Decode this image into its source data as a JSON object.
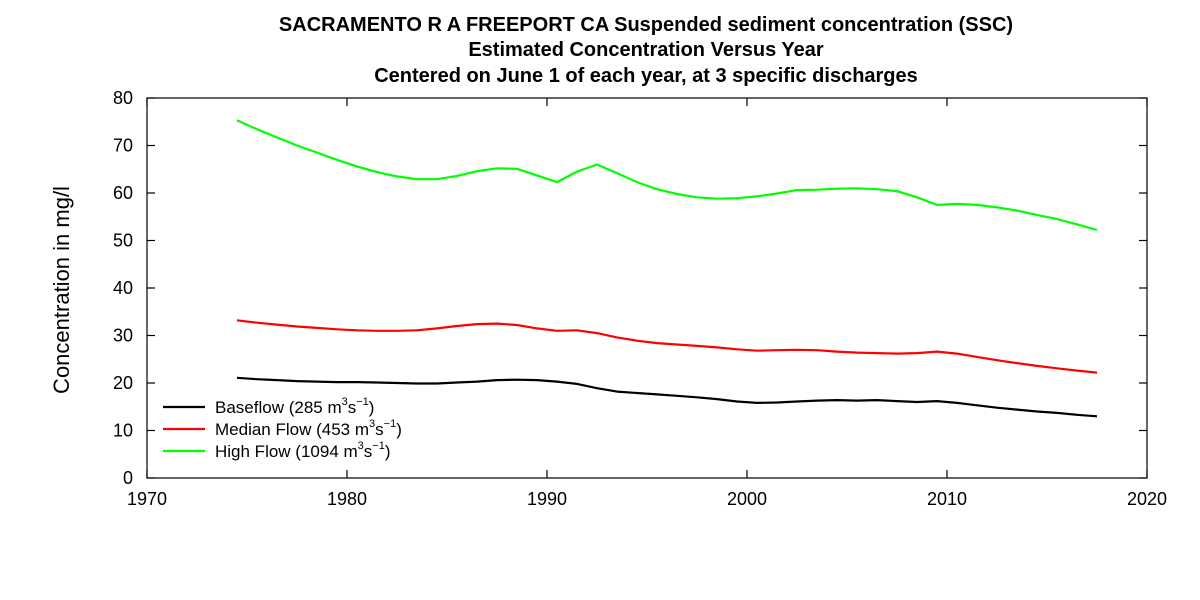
{
  "chart_data": {
    "type": "line",
    "title_lines": [
      "SACRAMENTO R A FREEPORT CA    Suspended sediment concentration (SSC)",
      "Estimated Concentration Versus Year",
      "Centered on June 1 of each year, at 3 specific discharges"
    ],
    "xlabel": "",
    "ylabel": "Concentration in mg/l",
    "xlim": [
      1970,
      2020
    ],
    "ylim": [
      0,
      80
    ],
    "x_ticks": [
      1970,
      1980,
      1990,
      2000,
      2010,
      2020
    ],
    "y_ticks": [
      0,
      10,
      20,
      30,
      40,
      50,
      60,
      70,
      80
    ],
    "grid": false,
    "legend_position": "bottom-left",
    "x": [
      1974.5,
      1975.5,
      1976.5,
      1977.5,
      1978.5,
      1979.5,
      1980.5,
      1981.5,
      1982.5,
      1983.5,
      1984.5,
      1985.5,
      1986.5,
      1987.5,
      1988.5,
      1989.5,
      1990.5,
      1991.5,
      1992.5,
      1993.5,
      1994.5,
      1995.5,
      1996.5,
      1997.5,
      1998.5,
      1999.5,
      2000.5,
      2001.5,
      2002.5,
      2003.5,
      2004.5,
      2005.5,
      2006.5,
      2007.5,
      2008.5,
      2009.5,
      2010.5,
      2011.5,
      2012.5,
      2013.5,
      2014.5,
      2015.5,
      2016.5,
      2017.5
    ],
    "series": [
      {
        "name": "Baseflow (285 m³s⁻¹)",
        "legend_main": "Baseflow (285 m",
        "legend_sup1": "3",
        "legend_mid": "s",
        "legend_sup2": "−1",
        "legend_end": ")",
        "color": "#000000",
        "values": [
          21.1,
          20.8,
          20.6,
          20.4,
          20.3,
          20.2,
          20.2,
          20.1,
          20.0,
          19.9,
          19.9,
          20.1,
          20.3,
          20.6,
          20.7,
          20.6,
          20.3,
          19.8,
          18.9,
          18.2,
          17.9,
          17.6,
          17.3,
          17.0,
          16.6,
          16.1,
          15.8,
          15.9,
          16.1,
          16.3,
          16.4,
          16.3,
          16.4,
          16.2,
          16.0,
          16.2,
          15.8,
          15.3,
          14.8,
          14.4,
          14.0,
          13.7,
          13.3,
          13.0
        ]
      },
      {
        "name": "Median Flow (453 m³s⁻¹)",
        "legend_main": "Median Flow (453 m",
        "legend_sup1": "3",
        "legend_mid": "s",
        "legend_sup2": "−1",
        "legend_end": ")",
        "color": "#ff0000",
        "values": [
          33.2,
          32.7,
          32.3,
          31.9,
          31.6,
          31.3,
          31.1,
          31.0,
          31.0,
          31.1,
          31.5,
          32.0,
          32.4,
          32.5,
          32.2,
          31.5,
          31.0,
          31.1,
          30.5,
          29.6,
          28.9,
          28.4,
          28.1,
          27.8,
          27.5,
          27.1,
          26.8,
          26.9,
          27.0,
          26.9,
          26.6,
          26.4,
          26.3,
          26.2,
          26.3,
          26.6,
          26.2,
          25.5,
          24.8,
          24.2,
          23.6,
          23.1,
          22.6,
          22.2
        ]
      },
      {
        "name": "High Flow (1094 m³s⁻¹)",
        "legend_main": "High Flow (1094 m",
        "legend_sup1": "3",
        "legend_mid": "s",
        "legend_sup2": "−1",
        "legend_end": ")",
        "color": "#00ff00",
        "values": [
          75.3,
          73.4,
          71.7,
          70.0,
          68.5,
          67.0,
          65.6,
          64.4,
          63.5,
          62.9,
          62.9,
          63.6,
          64.6,
          65.2,
          65.1,
          63.7,
          62.3,
          64.5,
          66.0,
          64.2,
          62.3,
          60.8,
          59.8,
          59.1,
          58.8,
          58.9,
          59.3,
          59.9,
          60.6,
          60.7,
          60.9,
          61.0,
          60.8,
          60.4,
          59.1,
          57.5,
          57.7,
          57.5,
          57.0,
          56.3,
          55.4,
          54.5,
          53.4,
          52.2
        ]
      }
    ]
  }
}
